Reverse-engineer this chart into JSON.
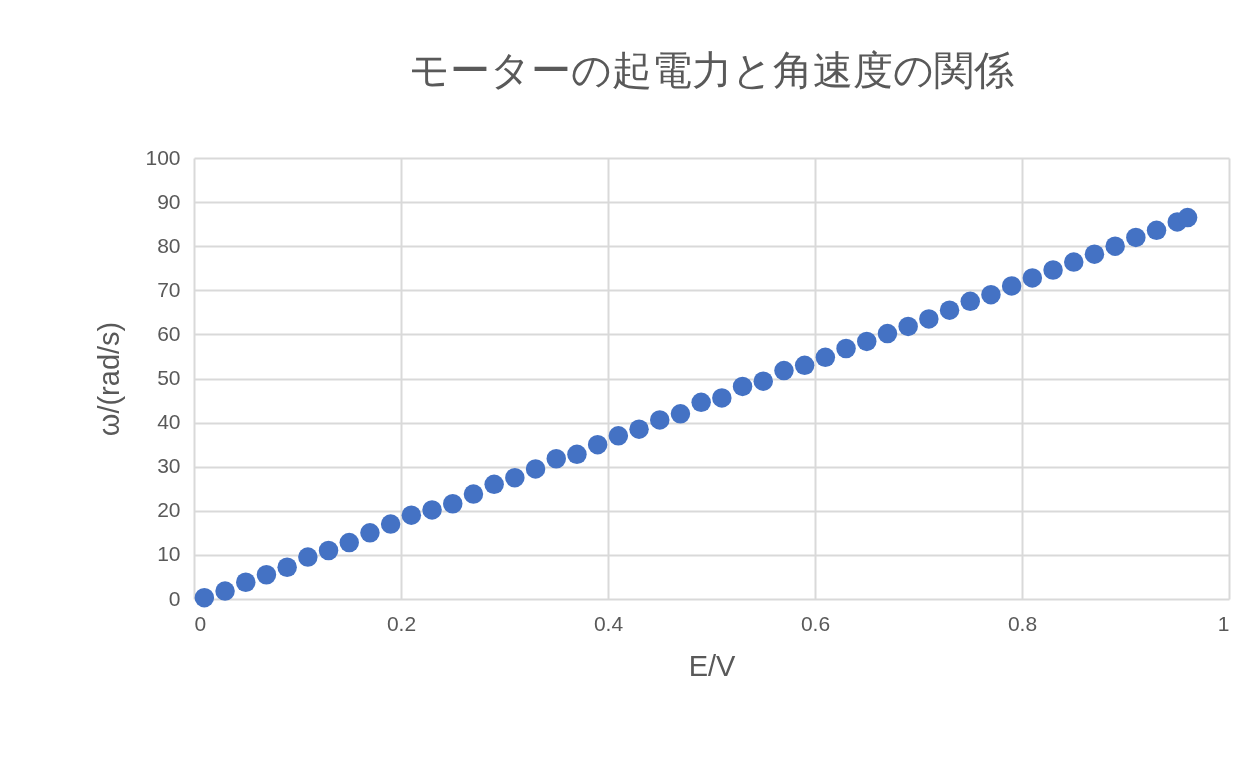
{
  "chart_data": {
    "type": "scatter",
    "title": "モーターの起電力と角速度の関係",
    "xlabel": "E/V",
    "ylabel": "ω/(rad/s)",
    "x": [
      0.01,
      0.03,
      0.05,
      0.07,
      0.09,
      0.11,
      0.13,
      0.15,
      0.17,
      0.19,
      0.21,
      0.23,
      0.25,
      0.27,
      0.29,
      0.31,
      0.33,
      0.35,
      0.37,
      0.39,
      0.41,
      0.43,
      0.45,
      0.47,
      0.49,
      0.51,
      0.53,
      0.55,
      0.57,
      0.59,
      0.61,
      0.63,
      0.65,
      0.67,
      0.69,
      0.71,
      0.73,
      0.75,
      0.77,
      0.79,
      0.81,
      0.83,
      0.85,
      0.87,
      0.89,
      0.91,
      0.93,
      0.95,
      0.96
    ],
    "series": [
      {
        "color": "#4472c4",
        "values": [
          0.3,
          1.8,
          3.8,
          5.5,
          7.2,
          9.5,
          11,
          12.8,
          15,
          17,
          19,
          20.2,
          21.6,
          23.8,
          26,
          27.5,
          29.5,
          31.8,
          32.8,
          35,
          37,
          38.5,
          40.6,
          42,
          44.6,
          45.6,
          48.2,
          49.4,
          51.8,
          53,
          54.8,
          56.8,
          58.4,
          60.2,
          61.8,
          63.5,
          65.5,
          67.5,
          69,
          71,
          72.8,
          74.6,
          76.4,
          78.2,
          80,
          82,
          83.6,
          85.5,
          86.5
        ]
      }
    ],
    "xlim": [
      0,
      1
    ],
    "xticks": [
      0,
      0.2,
      0.4,
      0.6,
      0.8,
      1
    ],
    "ylim": [
      0,
      100
    ],
    "yticks": [
      0,
      10,
      20,
      30,
      40,
      50,
      60,
      70,
      80,
      90,
      100
    ],
    "grid": true,
    "marker": "circle"
  }
}
